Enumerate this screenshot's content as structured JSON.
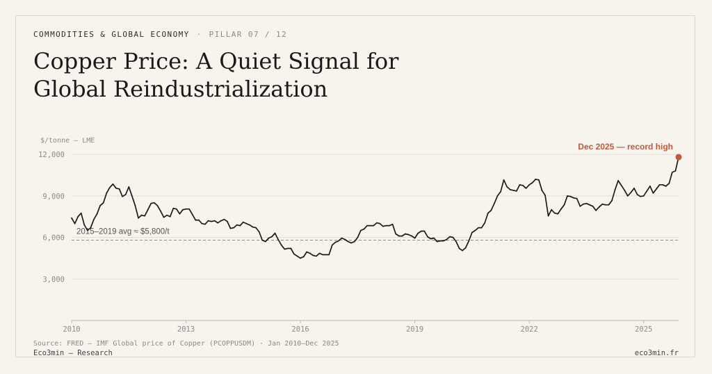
{
  "header": {
    "section": "COMMODITIES & GLOBAL ECONOMY",
    "separator": "·",
    "pillar": "PILLAR 07 / 12",
    "title": "Copper Price: A Quiet Signal for Global Reindustrialization"
  },
  "footer": {
    "source": "Source: FRED — IMF Global price of Copper (PCOPPUSDM) · Jan 2010–Dec 2025",
    "brand": "Eco3min — Research",
    "site": "eco3min.fr"
  },
  "colors": {
    "line": "#1a1a1a",
    "accent": "#c0583a",
    "grid": "#e2ddd3",
    "reference": "#8a8a8a",
    "axis_text": "#8a8a8a"
  },
  "chart_data": {
    "type": "line",
    "unit_label": "$/tonne — LME",
    "ylim": [
      0,
      12000
    ],
    "xlim": [
      2010,
      2025.917
    ],
    "y_ticks": [
      {
        "value": 3000,
        "label": "3,000"
      },
      {
        "value": 6000,
        "label": "6,000"
      },
      {
        "value": 9000,
        "label": "9,000"
      },
      {
        "value": 12000,
        "label": "12,000"
      }
    ],
    "x_ticks": [
      {
        "value": 2010,
        "label": "2010"
      },
      {
        "value": 2013,
        "label": "2013"
      },
      {
        "value": 2016,
        "label": "2016"
      },
      {
        "value": 2019,
        "label": "2019"
      },
      {
        "value": 2022,
        "label": "2022"
      },
      {
        "value": 2025,
        "label": "2025"
      }
    ],
    "grid": true,
    "reference_line": {
      "value": 5800,
      "label": "2015–2019 avg ≈ $5,800/t"
    },
    "highlight": {
      "x": 2025.917,
      "y": 11800,
      "label": "Dec 2025 — record high"
    },
    "points": [
      [
        2010.0,
        7400
      ],
      [
        2010.083,
        7000
      ],
      [
        2010.167,
        7500
      ],
      [
        2010.25,
        7750
      ],
      [
        2010.333,
        6900
      ],
      [
        2010.417,
        6500
      ],
      [
        2010.5,
        6700
      ],
      [
        2010.583,
        7300
      ],
      [
        2010.667,
        7700
      ],
      [
        2010.75,
        8300
      ],
      [
        2010.833,
        8500
      ],
      [
        2010.917,
        9200
      ],
      [
        2011.0,
        9600
      ],
      [
        2011.083,
        9850
      ],
      [
        2011.167,
        9550
      ],
      [
        2011.25,
        9500
      ],
      [
        2011.333,
        8950
      ],
      [
        2011.417,
        9100
      ],
      [
        2011.5,
        9650
      ],
      [
        2011.583,
        9000
      ],
      [
        2011.667,
        8300
      ],
      [
        2011.75,
        7400
      ],
      [
        2011.833,
        7600
      ],
      [
        2011.917,
        7550
      ],
      [
        2012.0,
        8000
      ],
      [
        2012.083,
        8450
      ],
      [
        2012.167,
        8500
      ],
      [
        2012.25,
        8300
      ],
      [
        2012.333,
        7900
      ],
      [
        2012.417,
        7450
      ],
      [
        2012.5,
        7600
      ],
      [
        2012.583,
        7500
      ],
      [
        2012.667,
        8100
      ],
      [
        2012.75,
        8050
      ],
      [
        2012.833,
        7700
      ],
      [
        2012.917,
        8000
      ],
      [
        2013.0,
        8050
      ],
      [
        2013.083,
        8050
      ],
      [
        2013.167,
        7650
      ],
      [
        2013.25,
        7250
      ],
      [
        2013.333,
        7250
      ],
      [
        2013.417,
        7000
      ],
      [
        2013.5,
        6950
      ],
      [
        2013.583,
        7200
      ],
      [
        2013.667,
        7150
      ],
      [
        2013.75,
        7200
      ],
      [
        2013.833,
        7050
      ],
      [
        2013.917,
        7200
      ],
      [
        2014.0,
        7300
      ],
      [
        2014.083,
        7150
      ],
      [
        2014.167,
        6650
      ],
      [
        2014.25,
        6700
      ],
      [
        2014.333,
        6900
      ],
      [
        2014.417,
        6850
      ],
      [
        2014.5,
        7100
      ],
      [
        2014.583,
        7000
      ],
      [
        2014.667,
        6900
      ],
      [
        2014.75,
        6750
      ],
      [
        2014.833,
        6700
      ],
      [
        2014.917,
        6400
      ],
      [
        2015.0,
        5800
      ],
      [
        2015.083,
        5700
      ],
      [
        2015.167,
        5950
      ],
      [
        2015.25,
        6050
      ],
      [
        2015.333,
        6300
      ],
      [
        2015.417,
        5850
      ],
      [
        2015.5,
        5450
      ],
      [
        2015.583,
        5150
      ],
      [
        2015.667,
        5200
      ],
      [
        2015.75,
        5200
      ],
      [
        2015.833,
        4800
      ],
      [
        2015.917,
        4650
      ],
      [
        2016.0,
        4500
      ],
      [
        2016.083,
        4600
      ],
      [
        2016.167,
        4950
      ],
      [
        2016.25,
        4850
      ],
      [
        2016.333,
        4700
      ],
      [
        2016.417,
        4650
      ],
      [
        2016.5,
        4850
      ],
      [
        2016.583,
        4750
      ],
      [
        2016.667,
        4750
      ],
      [
        2016.75,
        4750
      ],
      [
        2016.833,
        5450
      ],
      [
        2016.917,
        5650
      ],
      [
        2017.0,
        5750
      ],
      [
        2017.083,
        5950
      ],
      [
        2017.167,
        5850
      ],
      [
        2017.25,
        5700
      ],
      [
        2017.333,
        5600
      ],
      [
        2017.417,
        5700
      ],
      [
        2017.5,
        6000
      ],
      [
        2017.583,
        6500
      ],
      [
        2017.667,
        6600
      ],
      [
        2017.75,
        6850
      ],
      [
        2017.833,
        6850
      ],
      [
        2017.917,
        6850
      ],
      [
        2018.0,
        7050
      ],
      [
        2018.083,
        7000
      ],
      [
        2018.167,
        6800
      ],
      [
        2018.25,
        6850
      ],
      [
        2018.333,
        6850
      ],
      [
        2018.417,
        6950
      ],
      [
        2018.5,
        6250
      ],
      [
        2018.583,
        6100
      ],
      [
        2018.667,
        6100
      ],
      [
        2018.75,
        6250
      ],
      [
        2018.833,
        6200
      ],
      [
        2018.917,
        6100
      ],
      [
        2019.0,
        5950
      ],
      [
        2019.083,
        6300
      ],
      [
        2019.167,
        6450
      ],
      [
        2019.25,
        6450
      ],
      [
        2019.333,
        6050
      ],
      [
        2019.417,
        5900
      ],
      [
        2019.5,
        5950
      ],
      [
        2019.583,
        5700
      ],
      [
        2019.667,
        5750
      ],
      [
        2019.75,
        5750
      ],
      [
        2019.833,
        5850
      ],
      [
        2019.917,
        6050
      ],
      [
        2020.0,
        6000
      ],
      [
        2020.083,
        5700
      ],
      [
        2020.167,
        5200
      ],
      [
        2020.25,
        5050
      ],
      [
        2020.333,
        5250
      ],
      [
        2020.417,
        5750
      ],
      [
        2020.5,
        6350
      ],
      [
        2020.583,
        6500
      ],
      [
        2020.667,
        6700
      ],
      [
        2020.75,
        6700
      ],
      [
        2020.833,
        7050
      ],
      [
        2020.917,
        7750
      ],
      [
        2021.0,
        7950
      ],
      [
        2021.083,
        8450
      ],
      [
        2021.167,
        9000
      ],
      [
        2021.25,
        9300
      ],
      [
        2021.333,
        10150
      ],
      [
        2021.417,
        9650
      ],
      [
        2021.5,
        9450
      ],
      [
        2021.583,
        9400
      ],
      [
        2021.667,
        9350
      ],
      [
        2021.75,
        9800
      ],
      [
        2021.833,
        9750
      ],
      [
        2021.917,
        9550
      ],
      [
        2022.0,
        9800
      ],
      [
        2022.083,
        9950
      ],
      [
        2022.167,
        10200
      ],
      [
        2022.25,
        10150
      ],
      [
        2022.333,
        9400
      ],
      [
        2022.417,
        9050
      ],
      [
        2022.5,
        7550
      ],
      [
        2022.583,
        8000
      ],
      [
        2022.667,
        7750
      ],
      [
        2022.75,
        7700
      ],
      [
        2022.833,
        8050
      ],
      [
        2022.917,
        8350
      ],
      [
        2023.0,
        9000
      ],
      [
        2023.083,
        8950
      ],
      [
        2023.167,
        8850
      ],
      [
        2023.25,
        8800
      ],
      [
        2023.333,
        8250
      ],
      [
        2023.417,
        8400
      ],
      [
        2023.5,
        8450
      ],
      [
        2023.583,
        8350
      ],
      [
        2023.667,
        8250
      ],
      [
        2023.75,
        7950
      ],
      [
        2023.833,
        8200
      ],
      [
        2023.917,
        8400
      ],
      [
        2024.0,
        8350
      ],
      [
        2024.083,
        8350
      ],
      [
        2024.167,
        8650
      ],
      [
        2024.25,
        9450
      ],
      [
        2024.333,
        10100
      ],
      [
        2024.417,
        9750
      ],
      [
        2024.5,
        9400
      ],
      [
        2024.583,
        9000
      ],
      [
        2024.667,
        9250
      ],
      [
        2024.75,
        9550
      ],
      [
        2024.833,
        9100
      ],
      [
        2024.917,
        8950
      ],
      [
        2025.0,
        9000
      ],
      [
        2025.083,
        9350
      ],
      [
        2025.167,
        9700
      ],
      [
        2025.25,
        9200
      ],
      [
        2025.333,
        9500
      ],
      [
        2025.417,
        9800
      ],
      [
        2025.5,
        9800
      ],
      [
        2025.583,
        9700
      ],
      [
        2025.667,
        9900
      ],
      [
        2025.75,
        10700
      ],
      [
        2025.833,
        10800
      ],
      [
        2025.917,
        11800
      ]
    ]
  }
}
